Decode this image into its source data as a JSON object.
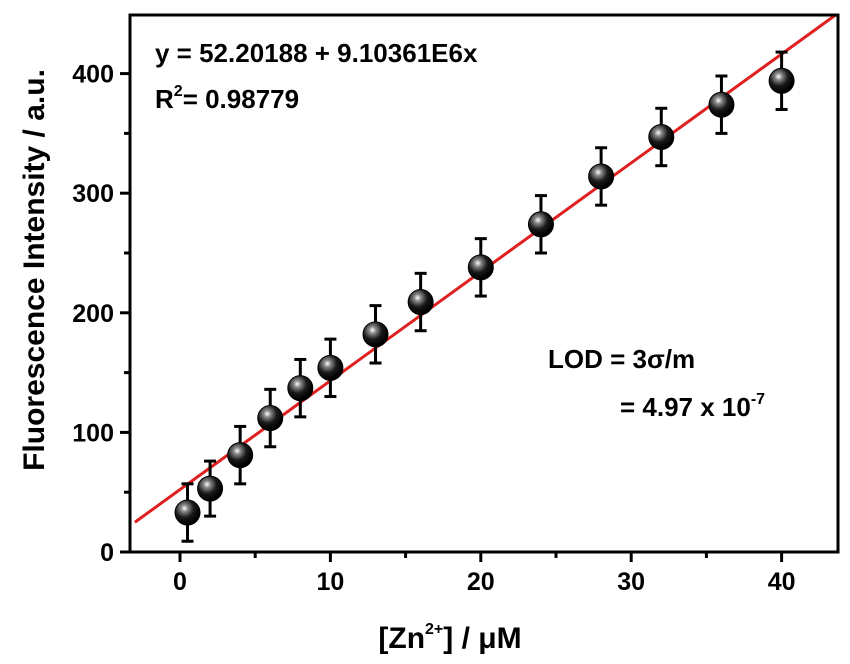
{
  "chart_data": {
    "type": "scatter",
    "xlabel": {
      "pre": "[Zn",
      "sup": "2+",
      "post": "] / μM"
    },
    "ylabel": "Fluorescence Intensity / a.u.",
    "xlim": [
      -3,
      44.5
    ],
    "ylim": [
      0,
      450
    ],
    "x_ticks": [
      0,
      10,
      20,
      30,
      40
    ],
    "y_ticks": [
      0,
      100,
      200,
      300,
      400
    ],
    "x_tick_labels": [
      "0",
      "10",
      "20",
      "30",
      "40"
    ],
    "y_tick_labels": [
      "0",
      "100",
      "200",
      "300",
      "400"
    ],
    "grid": false,
    "series": [
      {
        "marker": "black-sphere",
        "points": [
          {
            "x": 0.5,
            "y": 33,
            "err": 24
          },
          {
            "x": 2,
            "y": 53,
            "err": 23
          },
          {
            "x": 4,
            "y": 81,
            "err": 24
          },
          {
            "x": 6,
            "y": 112,
            "err": 24
          },
          {
            "x": 8,
            "y": 137,
            "err": 24
          },
          {
            "x": 10,
            "y": 154,
            "err": 24
          },
          {
            "x": 13,
            "y": 182,
            "err": 24
          },
          {
            "x": 16,
            "y": 209,
            "err": 24
          },
          {
            "x": 20,
            "y": 238,
            "err": 24
          },
          {
            "x": 24,
            "y": 274,
            "err": 24
          },
          {
            "x": 28,
            "y": 314,
            "err": 24
          },
          {
            "x": 32,
            "y": 347,
            "err": 24
          },
          {
            "x": 36,
            "y": 374,
            "err": 24
          },
          {
            "x": 40,
            "y": 394,
            "err": 24
          }
        ]
      }
    ],
    "fit_line": {
      "intercept": 52.20188,
      "slope": 9.10361,
      "color": "#e02020"
    },
    "annotations": {
      "equation": "y = 52.20188 + 9.10361E6x",
      "r2_base": "R",
      "r2_sup": "2",
      "r2_value": "= 0.98779",
      "lod_line1": "LOD = 3σ/m",
      "lod_line2_base": "= 4.97 x 10",
      "lod_line2_sup": "-7"
    }
  }
}
